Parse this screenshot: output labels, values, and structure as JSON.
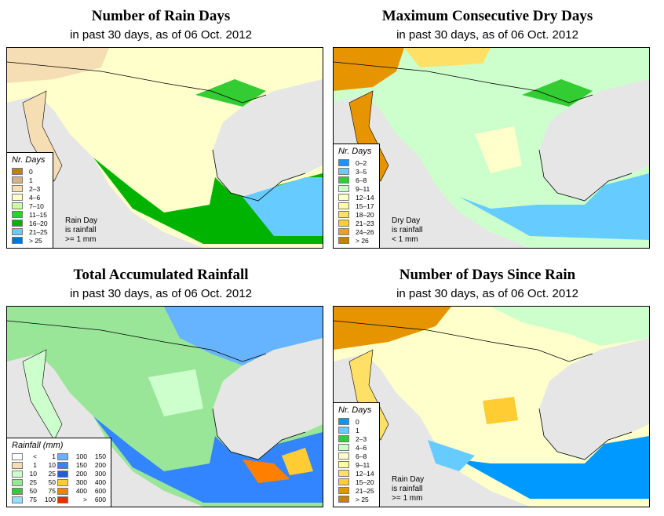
{
  "panels": {
    "rain_days": {
      "title": "Number of Rain Days",
      "subtitle": "in past 30 days, as of  06 Oct. 2012",
      "legend_title": "Nr. Days",
      "legend": [
        {
          "label": "0",
          "color": "#b8860b"
        },
        {
          "label": "1",
          "color": "#d2b48c"
        },
        {
          "label": "2–3",
          "color": "#f5deb3"
        },
        {
          "label": "4–6",
          "color": "#ffffcc"
        },
        {
          "label": "7–10",
          "color": "#ccff99"
        },
        {
          "label": "11–15",
          "color": "#33cc33"
        },
        {
          "label": "16–20",
          "color": "#00b300"
        },
        {
          "label": "21–25",
          "color": "#66ccff"
        },
        {
          "label": "> 25",
          "color": "#0077cc"
        }
      ],
      "note": "Rain Day\nis rainfall\n>= 1 mm"
    },
    "dry_days": {
      "title": "Maximum Consecutive Dry Days",
      "subtitle": "in past 30 days, as of  06 Oct. 2012",
      "legend_title": "Nr. Days",
      "legend": [
        {
          "label": "0–2",
          "color": "#1e90ff"
        },
        {
          "label": "3–5",
          "color": "#66ccff"
        },
        {
          "label": "6–8",
          "color": "#33cc33"
        },
        {
          "label": "9–11",
          "color": "#ccffcc"
        },
        {
          "label": "12–14",
          "color": "#ffffcc"
        },
        {
          "label": "15–17",
          "color": "#ffff99"
        },
        {
          "label": "18–20",
          "color": "#ffe066"
        },
        {
          "label": "21–23",
          "color": "#ffcc33"
        },
        {
          "label": "24–26",
          "color": "#f0a020"
        },
        {
          "label": "> 26",
          "color": "#cc8000"
        }
      ],
      "note": "Dry Day\nis rainfall\n< 1 mm"
    },
    "total_rain": {
      "title": "Total Accumulated Rainfall",
      "subtitle": "in past 30 days, as of  06 Oct. 2012",
      "legend_title": "Rainfall (mm)",
      "legend": [
        {
          "lo": "<",
          "hi": "1",
          "color": "#ffffff"
        },
        {
          "lo": "1",
          "hi": "10",
          "color": "#f5deb3"
        },
        {
          "lo": "10",
          "hi": "25",
          "color": "#ccffcc"
        },
        {
          "lo": "25",
          "hi": "50",
          "color": "#99e699"
        },
        {
          "lo": "50",
          "hi": "75",
          "color": "#33cc33"
        },
        {
          "lo": "75",
          "hi": "100",
          "color": "#99ddff"
        },
        {
          "lo": "100",
          "hi": "150",
          "color": "#66b3ff"
        },
        {
          "lo": "150",
          "hi": "200",
          "color": "#3385ff"
        },
        {
          "lo": "200",
          "hi": "300",
          "color": "#1f5fd6"
        },
        {
          "lo": "300",
          "hi": "400",
          "color": "#ffcc33"
        },
        {
          "lo": "400",
          "hi": "600",
          "color": "#ff8000"
        },
        {
          "lo": ">",
          "hi": "600",
          "color": "#e62e00"
        }
      ]
    },
    "since_rain": {
      "title": "Number of Days Since Rain",
      "subtitle": "in past 30 days, as of  06 Oct. 2012",
      "legend_title": "Nr. Days",
      "legend": [
        {
          "label": "0",
          "color": "#0099ff"
        },
        {
          "label": "1",
          "color": "#66ccff"
        },
        {
          "label": "2–3",
          "color": "#33cc33"
        },
        {
          "label": "4–6",
          "color": "#ccffcc"
        },
        {
          "label": "6–8",
          "color": "#ffffcc"
        },
        {
          "label": "9–11",
          "color": "#ffff99"
        },
        {
          "label": "12–14",
          "color": "#ffe066"
        },
        {
          "label": "15–20",
          "color": "#ffcc33"
        },
        {
          "label": "21–25",
          "color": "#e69500"
        },
        {
          "label": "> 25",
          "color": "#cc8000"
        }
      ],
      "note": "Rain Day\nis rainfall\n>= 1 mm"
    }
  }
}
